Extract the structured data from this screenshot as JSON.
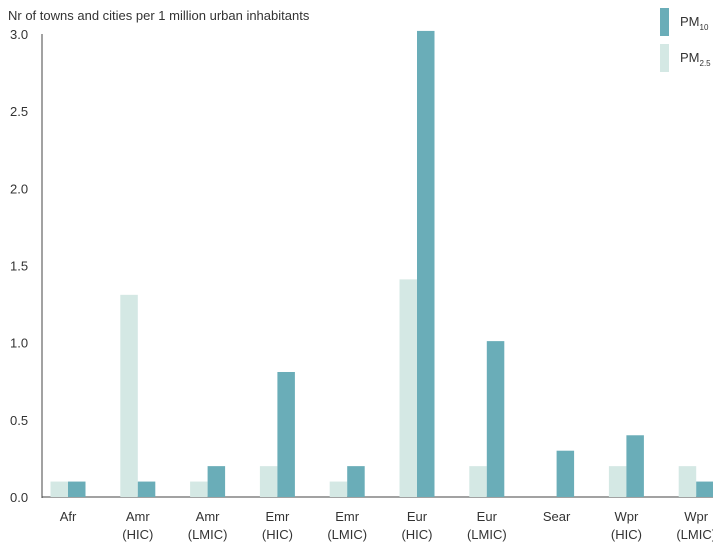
{
  "chart_data": {
    "type": "bar",
    "ylabel": "Nr of towns and cities per 1 million urban inhabitants",
    "ylim": [
      0,
      3.0
    ],
    "yticks": [
      "0.0",
      "0.5",
      "1.0",
      "1.5",
      "2.0",
      "2.5",
      "3.0"
    ],
    "ytick_values": [
      0,
      0.5,
      1.0,
      1.5,
      2.0,
      2.5,
      3.0
    ],
    "categories": [
      {
        "line1": "Afr",
        "line2": ""
      },
      {
        "line1": "Amr",
        "line2": "(HIC)"
      },
      {
        "line1": "Amr",
        "line2": "(LMIC)"
      },
      {
        "line1": "Emr",
        "line2": "(HIC)"
      },
      {
        "line1": "Emr",
        "line2": "(LMIC)"
      },
      {
        "line1": "Eur",
        "line2": "(HIC)"
      },
      {
        "line1": "Eur",
        "line2": "(LMIC)"
      },
      {
        "line1": "Sear",
        "line2": ""
      },
      {
        "line1": "Wpr",
        "line2": "(HIC)"
      },
      {
        "line1": "Wpr",
        "line2": "(LMIC)"
      }
    ],
    "series": [
      {
        "name": "PM2.5",
        "base": "PM",
        "sub": "2.5",
        "color": "#d4e8e4",
        "values": [
          0.1,
          1.31,
          0.1,
          0.2,
          0.1,
          1.41,
          0.2,
          0,
          0.2,
          0.2
        ]
      },
      {
        "name": "PM10",
        "base": "PM",
        "sub": "10",
        "color": "#6aadb8",
        "values": [
          0.1,
          0.1,
          0.2,
          0.81,
          0.2,
          3.02,
          1.01,
          0.3,
          0.4,
          0.1
        ]
      }
    ],
    "legend": {
      "placement": "top-right",
      "order": [
        1,
        0
      ]
    },
    "grid": false
  }
}
